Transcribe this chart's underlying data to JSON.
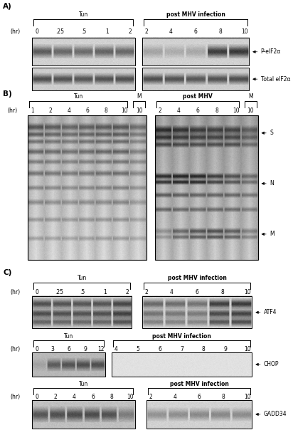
{
  "fig_width": 4.12,
  "fig_height": 6.04,
  "bg_color": "#ffffff",
  "panel_A": {
    "label": "A)",
    "tun_label": "Tun",
    "mhv_label": "post MHV infection",
    "tun_timepoints": [
      "0",
      ".25",
      ".5",
      "1",
      "2"
    ],
    "mhv_timepoints": [
      "2",
      "4",
      "6",
      "8",
      "10"
    ],
    "hr_label": "(hr)",
    "blot1_label": "P-eIF2α",
    "blot2_label": "Total eIF2α"
  },
  "panel_B": {
    "label": "B)",
    "tun_label": "Tun",
    "mhv_label": "post MHV",
    "m_label": "M",
    "tun_timepoints": [
      "1",
      "2",
      "4",
      "6",
      "8",
      "10"
    ],
    "mhv_timepoints": [
      "2",
      "4",
      "6",
      "8",
      "10"
    ],
    "m_timepoint": "10",
    "hr_label": "(hr)",
    "band_labels": [
      "S",
      "N",
      "M"
    ]
  },
  "panel_C": {
    "label": "C)",
    "atf4": {
      "tun_label": "Tun",
      "mhv_label": "post MHV infection",
      "tun_timepoints": [
        "0",
        ".25",
        ".5",
        "1",
        "2"
      ],
      "mhv_timepoints": [
        "2",
        "4",
        "6",
        "8",
        "10"
      ],
      "hr_label": "(hr)",
      "blot_label": "ATF4"
    },
    "chop": {
      "tun_label": "Tun",
      "mhv_label": "post MHV infection",
      "tun_timepoints": [
        "0",
        "3",
        "6",
        "9",
        "12"
      ],
      "mhv_timepoints": [
        "4",
        "5",
        "6",
        "7",
        "8",
        "9",
        "10"
      ],
      "hr_label": "(hr)",
      "blot_label": "CHOP"
    },
    "gadd34": {
      "tun_label": "Tun",
      "mhv_label": "post MHV infection",
      "tun_timepoints": [
        "0",
        "2",
        "4",
        "6",
        "8",
        "10"
      ],
      "mhv_timepoints": [
        "2",
        "4",
        "6",
        "8",
        "10"
      ],
      "hr_label": "(hr)",
      "blot_label": "GADD34"
    }
  }
}
